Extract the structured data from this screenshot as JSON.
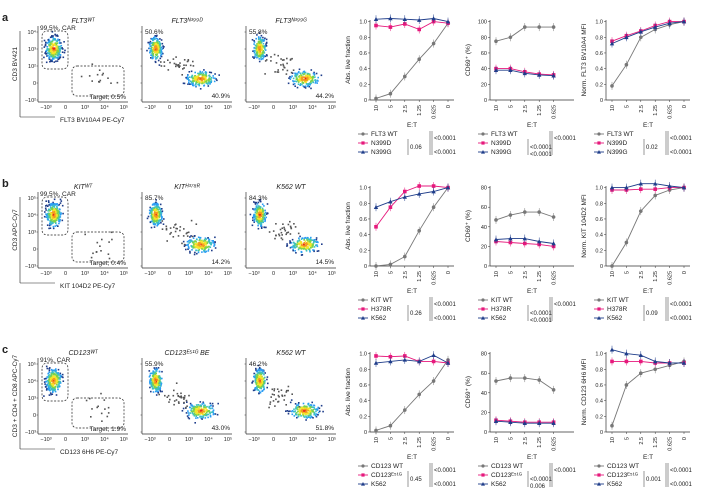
{
  "panels": [
    {
      "letter": "a",
      "flow": {
        "ylabel": "CD3 BV421",
        "xlabel": "FLT3 BV10A4 PE-Cy7",
        "yticks": [
          "10⁴",
          "10³",
          "10²",
          "0",
          "−10²"
        ],
        "xticks": [
          "−10³",
          "0",
          "10³",
          "10⁴",
          "10⁵"
        ],
        "plots": [
          {
            "title": "FLT3ᵂᵀ",
            "upper": "99.5%, CAR",
            "lower": "Target, 0.5%",
            "gated": true
          },
          {
            "title": "FLT3ᴺ³⁹⁹ᴰ",
            "upper": "50.6%",
            "lower": "40.9%",
            "gated": false
          },
          {
            "title": "FLT3ᴺ³⁹⁹ᴳ",
            "upper": "55.8%",
            "lower": "44.2%",
            "gated": false
          }
        ]
      }
    },
    {
      "letter": "b",
      "flow": {
        "ylabel": "CD3 APC-Cy7",
        "xlabel": "KIT 104D2 PE-Cy7",
        "yticks": [
          "10⁵",
          "10⁴",
          "10³",
          "0",
          "−10³"
        ],
        "xticks": [
          "−10³",
          "0",
          "10³",
          "10⁴",
          "10⁵"
        ],
        "plots": [
          {
            "title": "KITᵂᵀ",
            "upper": "99.5%, CAR",
            "lower": "Target, 0.4%",
            "gated": true
          },
          {
            "title": "KITᴴ³⁷⁸ᴿ",
            "upper": "85.7%",
            "lower": "14.2%",
            "gated": false
          },
          {
            "title": "K562 WT",
            "upper": "84.3%",
            "lower": "14.5%",
            "gated": false
          }
        ]
      }
    },
    {
      "letter": "c",
      "flow": {
        "ylabel": "CD3 + CD4 + CD8 APC-Cy7",
        "xlabel": "CD123 6H6 PE-Cy7",
        "yticks": [
          "10⁵",
          "10⁴",
          "10³",
          "0",
          "−10³"
        ],
        "xticks": [
          "−10³",
          "0",
          "10³",
          "10⁴",
          "10⁵"
        ],
        "plots": [
          {
            "title": "CD123ᵂᵀ",
            "upper": "91%, CAR",
            "lower": "Target, 1.9%",
            "gated": true
          },
          {
            "title": "CD123ᴱ⁵¹ᴳ BE",
            "upper": "55.9%",
            "lower": "43.0%",
            "gated": false
          },
          {
            "title": "K562 WT",
            "upper": "46.2%",
            "lower": "51.8%",
            "gated": false
          }
        ]
      }
    }
  ],
  "colors": {
    "wt": "#777777",
    "mut1": "#e6197c",
    "mut2": "#1f3d8a"
  },
  "chart_data": [
    {
      "panel": "a",
      "type": "line",
      "ylabel": "Abs. live fraction",
      "xlabel": "E:T",
      "categories": [
        "10",
        "5",
        "2.5",
        "1.25",
        "0.625",
        "0"
      ],
      "ylim": [
        0,
        1.0
      ],
      "yticks": [
        "0",
        "0.2",
        "0.4",
        "0.6",
        "0.8",
        "1.0"
      ],
      "series": [
        {
          "name": "FLT3 WT",
          "values": [
            0.02,
            0.08,
            0.3,
            0.52,
            0.72,
            0.98
          ]
        },
        {
          "name": "N399D",
          "values": [
            0.95,
            0.93,
            0.97,
            0.9,
            1.0,
            0.98
          ]
        },
        {
          "name": "N399G",
          "values": [
            1.03,
            1.04,
            1.03,
            1.02,
            1.04,
            1.0
          ]
        }
      ],
      "stats": [
        [
          "0.06"
        ],
        [
          "<0.0001",
          "<0.0001"
        ]
      ]
    },
    {
      "panel": "a",
      "type": "line",
      "ylabel": "CD69⁺ (%)",
      "xlabel": "E:T",
      "categories": [
        "10",
        "5",
        "2.5",
        "1.25",
        "0.625"
      ],
      "ylim": [
        0,
        100
      ],
      "yticks": [
        "0",
        "20",
        "40",
        "60",
        "80",
        "100"
      ],
      "series": [
        {
          "name": "FLT3 WT",
          "values": [
            75,
            80,
            93,
            93,
            93
          ]
        },
        {
          "name": "N399D",
          "values": [
            40,
            40,
            36,
            33,
            32
          ]
        },
        {
          "name": "N399G",
          "values": [
            38,
            38,
            34,
            32,
            31
          ]
        }
      ],
      "stats": [
        [
          "<0.0001",
          "<0.0001"
        ],
        [
          "<0.0001"
        ]
      ]
    },
    {
      "panel": "a",
      "type": "line",
      "ylabel": "Norm. FLT3 BV10A4 MFI",
      "xlabel": "E:T",
      "categories": [
        "10",
        "5",
        "2.5",
        "1.25",
        "0.625",
        "0"
      ],
      "ylim": [
        0,
        1.0
      ],
      "yticks": [
        "0",
        "0.2",
        "0.4",
        "0.6",
        "0.8",
        "1.0"
      ],
      "series": [
        {
          "name": "FLT3 WT",
          "values": [
            0.18,
            0.45,
            0.8,
            0.9,
            0.96,
            1.0
          ]
        },
        {
          "name": "N399D",
          "values": [
            0.75,
            0.82,
            0.88,
            0.95,
            1.0,
            1.0
          ]
        },
        {
          "name": "N399G",
          "values": [
            0.72,
            0.8,
            0.87,
            0.93,
            0.98,
            1.0
          ]
        }
      ],
      "stats": [
        [
          "0.02"
        ],
        [
          "<0.0001",
          "<0.0001"
        ]
      ]
    },
    {
      "panel": "b",
      "type": "line",
      "ylabel": "Abs. live fraction",
      "xlabel": "E:T",
      "categories": [
        "10",
        "5",
        "2.5",
        "1.25",
        "0.625",
        "0"
      ],
      "ylim": [
        0,
        1.0
      ],
      "yticks": [
        "0",
        "0.2",
        "0.4",
        "0.6",
        "0.8",
        "1.0"
      ],
      "series": [
        {
          "name": "KIT WT",
          "values": [
            0.0,
            0.02,
            0.12,
            0.45,
            0.75,
            1.0
          ]
        },
        {
          "name": "H378R",
          "values": [
            0.5,
            0.75,
            0.95,
            1.02,
            1.02,
            1.0
          ]
        },
        {
          "name": "K562",
          "values": [
            0.75,
            0.82,
            0.88,
            0.92,
            0.95,
            1.0
          ]
        }
      ],
      "stats": [
        [
          "0.26"
        ],
        [
          "<0.0001",
          "<0.0001"
        ]
      ]
    },
    {
      "panel": "b",
      "type": "line",
      "ylabel": "CD69⁺ (%)",
      "xlabel": "E:T",
      "categories": [
        "10",
        "5",
        "2.5",
        "1.25",
        "0.625"
      ],
      "ylim": [
        0,
        80
      ],
      "yticks": [
        "0",
        "20",
        "40",
        "60",
        "80"
      ],
      "series": [
        {
          "name": "KIT WT",
          "values": [
            47,
            52,
            55,
            55,
            50
          ]
        },
        {
          "name": "H378R",
          "values": [
            25,
            24,
            23,
            22,
            20
          ]
        },
        {
          "name": "K562",
          "values": [
            27,
            28,
            28,
            25,
            23
          ]
        }
      ],
      "stats": [
        [
          "<0.0001",
          "<0.0001"
        ],
        [
          "<0.0001"
        ]
      ]
    },
    {
      "panel": "b",
      "type": "line",
      "ylabel": "Norm. KIT 104D2 MFI",
      "xlabel": "E:T",
      "categories": [
        "10",
        "5",
        "2.5",
        "1.25",
        "0.625",
        "0"
      ],
      "ylim": [
        0,
        1.0
      ],
      "yticks": [
        "0",
        "0.2",
        "0.4",
        "0.6",
        "0.8",
        "1.0"
      ],
      "series": [
        {
          "name": "KIT WT",
          "values": [
            0.0,
            0.3,
            0.7,
            0.9,
            0.97,
            1.0
          ]
        },
        {
          "name": "H378R",
          "values": [
            0.97,
            0.97,
            0.98,
            0.98,
            1.0,
            1.0
          ]
        },
        {
          "name": "K562",
          "values": [
            1.0,
            1.0,
            1.05,
            1.05,
            1.02,
            1.0
          ]
        }
      ],
      "stats": [
        [
          "0.09"
        ],
        [
          "<0.0001",
          "<0.0001"
        ]
      ]
    },
    {
      "panel": "c",
      "type": "line",
      "ylabel": "Abs. live fraction",
      "xlabel": "E:T",
      "categories": [
        "10",
        "5",
        "2.5",
        "1.25",
        "0.625",
        "0"
      ],
      "ylim": [
        0,
        1.0
      ],
      "yticks": [
        "0",
        "0.2",
        "0.4",
        "0.6",
        "0.8",
        "1.0"
      ],
      "series": [
        {
          "name": "CD123 WT",
          "values": [
            0.02,
            0.08,
            0.28,
            0.48,
            0.65,
            0.92
          ]
        },
        {
          "name": "CD123ᴱ⁵¹ᴳ",
          "values": [
            0.97,
            0.96,
            0.97,
            0.9,
            0.9,
            0.88
          ]
        },
        {
          "name": "K562",
          "values": [
            0.88,
            0.9,
            0.92,
            0.9,
            0.98,
            0.88
          ]
        }
      ],
      "stats": [
        [
          "0.45"
        ],
        [
          "<0.0001",
          "<0.0001"
        ]
      ]
    },
    {
      "panel": "c",
      "type": "line",
      "ylabel": "CD69⁺ (%)",
      "xlabel": "E:T",
      "categories": [
        "10",
        "5",
        "2.5",
        "1.25",
        "0.625"
      ],
      "ylim": [
        0,
        80
      ],
      "yticks": [
        "0",
        "20",
        "40",
        "60",
        "80"
      ],
      "series": [
        {
          "name": "CD123 WT",
          "values": [
            52,
            55,
            55,
            53,
            43
          ]
        },
        {
          "name": "CD123ᴱ⁵¹ᴳ",
          "values": [
            12,
            11,
            10,
            10,
            10
          ]
        },
        {
          "name": "K562",
          "values": [
            11,
            10,
            9,
            9,
            9
          ]
        }
      ],
      "stats": [
        [
          "<0.0001",
          "0.006"
        ],
        [
          "<0.0001"
        ]
      ]
    },
    {
      "panel": "c",
      "type": "line",
      "ylabel": "Norm. CD123 6H6 MFI",
      "xlabel": "E:T",
      "categories": [
        "10",
        "5",
        "2.5",
        "1.25",
        "0.625",
        "0"
      ],
      "ylim": [
        0,
        1.0
      ],
      "yticks": [
        "0",
        "0.2",
        "0.4",
        "0.6",
        "0.8",
        "1.0"
      ],
      "series": [
        {
          "name": "CD123 WT",
          "values": [
            0.08,
            0.6,
            0.75,
            0.8,
            0.85,
            0.9
          ]
        },
        {
          "name": "CD123ᴱ⁵¹ᴳ",
          "values": [
            0.9,
            0.9,
            0.9,
            0.88,
            0.88,
            0.88
          ]
        },
        {
          "name": "K562",
          "values": [
            1.05,
            1.0,
            0.98,
            0.9,
            0.88,
            0.88
          ]
        }
      ],
      "stats": [
        [
          "0.001"
        ],
        [
          "<0.0001",
          "<0.0001"
        ]
      ]
    }
  ]
}
